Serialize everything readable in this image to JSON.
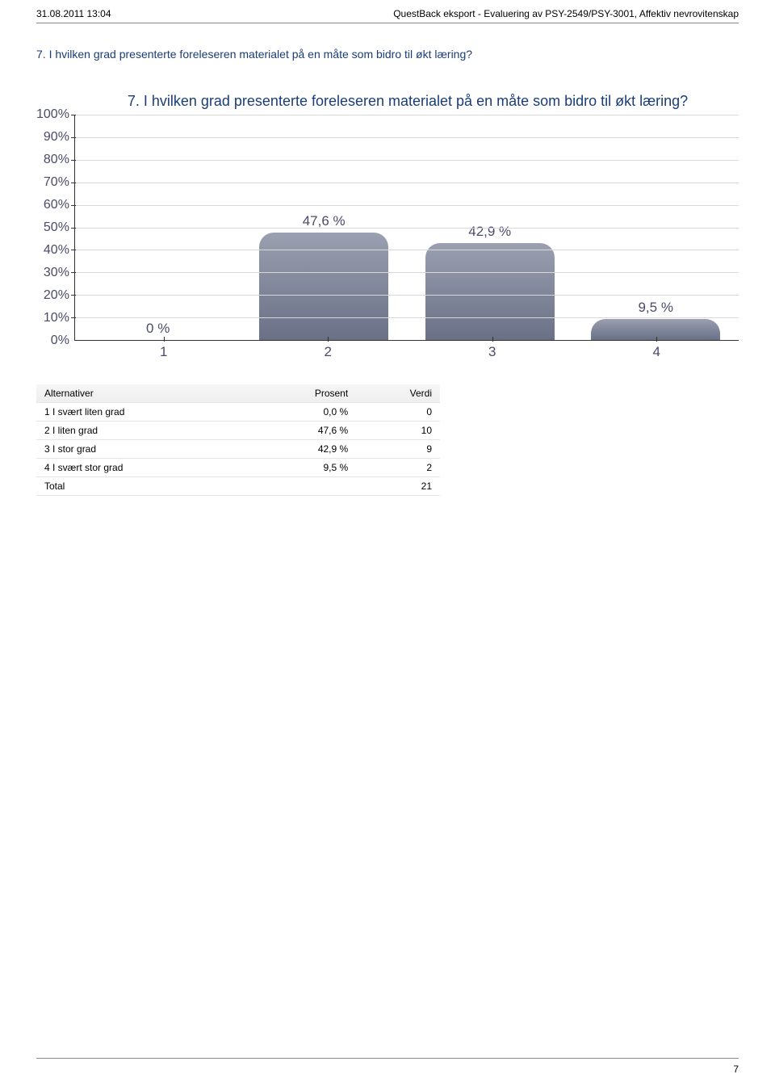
{
  "header": {
    "timestamp": "31.08.2011 13:04",
    "report_title": "QuestBack eksport - Evaluering av PSY-2549/PSY-3001, Affektiv nevrovitenskap"
  },
  "question": {
    "heading": "7. I hvilken grad presenterte foreleseren materialet på en måte som bidro til økt læring?"
  },
  "chart": {
    "type": "bar",
    "title": "7. I hvilken grad presenterte foreleseren materialet på en måte som bidro til økt læring?",
    "title_fontsize": 18,
    "title_color": "#1a3d7a",
    "ylim": [
      0,
      100
    ],
    "ytick_step": 10,
    "y_suffix": "%",
    "grid_color": "#d8d8d8",
    "axis_color": "#333333",
    "tick_label_color": "#4a4a6a",
    "tick_fontsize": 17,
    "background_color": "#ffffff",
    "bar_width_pct": 78,
    "bar_radius": 18,
    "bars": [
      {
        "x": "1",
        "value": 0.0,
        "label": "0 %",
        "fill_top": "#9aa0b0",
        "fill_bottom": "#6a7086"
      },
      {
        "x": "2",
        "value": 47.6,
        "label": "47,6 %",
        "fill_top": "#9aa0b0",
        "fill_bottom": "#6a7086"
      },
      {
        "x": "3",
        "value": 42.9,
        "label": "42,9 %",
        "fill_top": "#9aa0b0",
        "fill_bottom": "#6a7086"
      },
      {
        "x": "4",
        "value": 9.5,
        "label": "9,5 %",
        "fill_top": "#9aa0b0",
        "fill_bottom": "#6a7086"
      }
    ]
  },
  "table": {
    "columns": [
      "Alternativer",
      "Prosent",
      "Verdi"
    ],
    "rows": [
      [
        "1 I svært liten grad",
        "0,0 %",
        "0"
      ],
      [
        "2 I liten grad",
        "47,6 %",
        "10"
      ],
      [
        "3 I stor grad",
        "42,9 %",
        "9"
      ],
      [
        "4 I svært stor grad",
        "9,5 %",
        "2"
      ],
      [
        "Total",
        "",
        "21"
      ]
    ],
    "header_bg_top": "#f6f6f6",
    "header_bg_bottom": "#eeeeee",
    "border_color": "#e5e5e5",
    "fontsize": 12
  },
  "footer": {
    "page_number": "7"
  }
}
